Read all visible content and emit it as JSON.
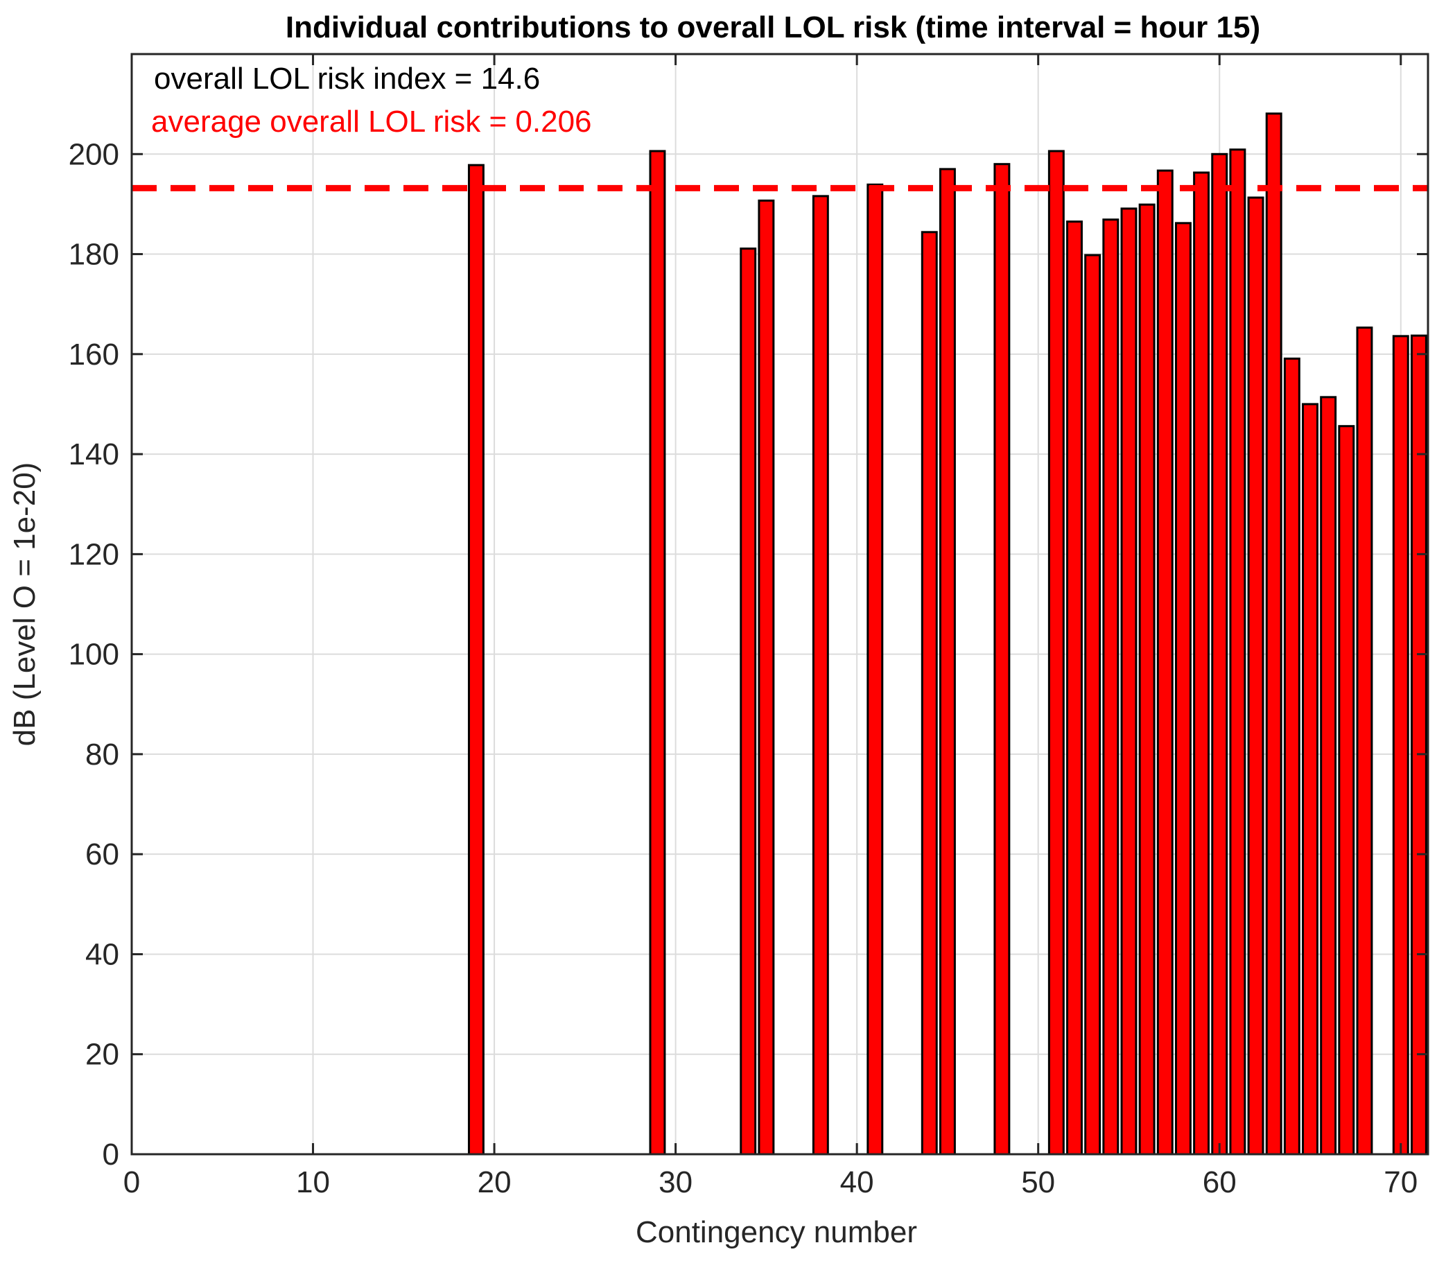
{
  "chart_data": {
    "type": "bar",
    "title": "Individual contributions to overall LOL risk (time interval = hour 15)",
    "xlabel": "Contingency number",
    "ylabel": "dB (Level O = 1e-20)",
    "xlim": [
      0,
      71.5
    ],
    "ylim": [
      0,
      220
    ],
    "xticks": [
      0,
      10,
      20,
      30,
      40,
      50,
      60,
      70
    ],
    "yticks": [
      0,
      20,
      40,
      60,
      80,
      100,
      120,
      140,
      160,
      180,
      200
    ],
    "grid": true,
    "bar_color": "#ff0000",
    "bar_edge_color": "#000000",
    "x": [
      19,
      29,
      34,
      35,
      38,
      41,
      44,
      45,
      48,
      51,
      52,
      53,
      54,
      55,
      56,
      57,
      58,
      59,
      60,
      61,
      62,
      63,
      64,
      65,
      66,
      67,
      68,
      70,
      71
    ],
    "values": [
      197.8,
      200.6,
      181.1,
      190.7,
      191.6,
      193.9,
      184.4,
      197.0,
      198.0,
      200.6,
      186.5,
      179.8,
      186.9,
      189.1,
      189.9,
      196.7,
      186.2,
      196.3,
      200.0,
      200.9,
      191.3,
      208.1,
      159.1,
      150.0,
      151.4,
      145.6,
      165.3,
      163.6,
      163.7
    ],
    "reference_line": {
      "y": 193.2,
      "style": "dashed",
      "color": "#ff0000"
    },
    "annotations": [
      {
        "text": "overall LOL risk index = 14.6",
        "color": "#000000"
      },
      {
        "text": "average overall LOL risk = 0.206",
        "color": "#ff0000"
      }
    ]
  }
}
